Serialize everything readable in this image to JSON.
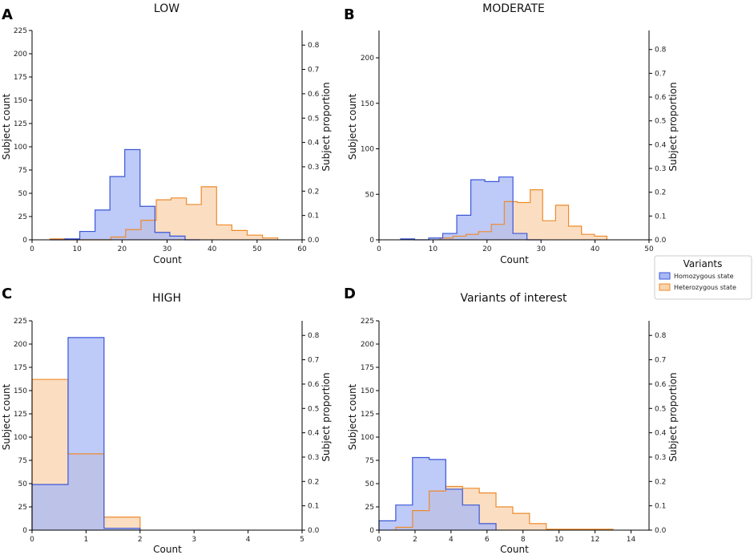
{
  "colors": {
    "homozygous_fill": "#a8b8f5",
    "homozygous_line": "#3b57d6",
    "heterozygous_fill": "#f9d3ad",
    "heterozygous_line": "#ee8a2b",
    "overlap_fill": "#b49cc8",
    "axis": "#000000"
  },
  "legend": {
    "title": "Variants",
    "entries": [
      "Homozygous state",
      "Heterozygous state"
    ]
  },
  "chart_data": [
    {
      "type": "histogram",
      "letter": "A",
      "title": "LOW",
      "xlabel": "Count",
      "ylabel": "Subject count",
      "ylabel_right": "Subject proportion",
      "xlim": [
        0,
        60
      ],
      "ylim": [
        0,
        225
      ],
      "xticks": [
        0,
        10,
        20,
        30,
        40,
        50,
        60
      ],
      "yticks": [
        0,
        25,
        50,
        75,
        100,
        125,
        150,
        175,
        200,
        225
      ],
      "yticks_right": [
        0.0,
        0.1,
        0.2,
        0.3,
        0.4,
        0.5,
        0.6,
        0.7,
        0.8
      ],
      "right_max": 0.86,
      "series": [
        {
          "name": "Homozygous state",
          "edges": [
            4,
            7.3,
            10.6,
            14,
            17.3,
            20.6,
            24,
            27.3,
            30.6,
            34,
            37.3
          ],
          "values": [
            0,
            1,
            9,
            32,
            68,
            97,
            36,
            8,
            4,
            0
          ]
        },
        {
          "name": "Heterozygous state",
          "edges": [
            4,
            7.4,
            10.7,
            14.1,
            17.5,
            20.8,
            24.2,
            27.6,
            30.9,
            34.3,
            37.6,
            41,
            44.4,
            47.8,
            51.2,
            54.6
          ],
          "values": [
            1,
            0,
            0,
            0,
            3,
            11,
            21,
            43,
            45,
            38,
            57,
            16,
            10,
            5,
            2
          ]
        }
      ]
    },
    {
      "type": "histogram",
      "letter": "B",
      "title": "MODERATE",
      "xlabel": "Count",
      "ylabel": "Subject count",
      "ylabel_right": "Subject proportion",
      "xlim": [
        0,
        50
      ],
      "ylim": [
        0,
        230
      ],
      "xticks": [
        0,
        10,
        20,
        30,
        40,
        50
      ],
      "yticks": [
        0,
        50,
        100,
        150,
        200
      ],
      "yticks_right": [
        0.0,
        0.1,
        0.2,
        0.3,
        0.4,
        0.5,
        0.6,
        0.7,
        0.8
      ],
      "right_max": 0.88,
      "series": [
        {
          "name": "Homozygous state",
          "edges": [
            4,
            6.6,
            9.2,
            11.8,
            14.4,
            17,
            19.6,
            22.2,
            24.8,
            27.4,
            30
          ],
          "values": [
            1,
            0,
            2,
            7,
            27,
            66,
            64,
            69,
            7,
            0
          ]
        },
        {
          "name": "Heterozygous state",
          "edges": [
            11.3,
            13.7,
            16.1,
            18.4,
            20.8,
            23.2,
            25.6,
            28,
            30.3,
            32.7,
            35.1,
            37.5,
            39.9,
            42.2
          ],
          "values": [
            2,
            4,
            6,
            9,
            17,
            42,
            41,
            55,
            21,
            38,
            15,
            6,
            4
          ]
        }
      ]
    },
    {
      "type": "histogram",
      "letter": "C",
      "title": "HIGH",
      "xlabel": "Count",
      "ylabel": "Subject count",
      "ylabel_right": "Subject proportion",
      "xlim": [
        0,
        5
      ],
      "ylim": [
        0,
        225
      ],
      "xticks": [
        0,
        1,
        2,
        3,
        4,
        5
      ],
      "yticks": [
        0,
        25,
        50,
        75,
        100,
        125,
        150,
        175,
        200,
        225
      ],
      "yticks_right": [
        0.0,
        0.1,
        0.2,
        0.3,
        0.4,
        0.5,
        0.6,
        0.7,
        0.8
      ],
      "right_max": 0.86,
      "series": [
        {
          "name": "Homozygous state",
          "edges": [
            0,
            0.667,
            1.333,
            2
          ],
          "values": [
            49,
            207,
            2
          ]
        },
        {
          "name": "Heterozygous state",
          "edges": [
            0,
            0.667,
            1.333,
            2
          ],
          "values": [
            162,
            82,
            14
          ]
        }
      ]
    },
    {
      "type": "histogram",
      "letter": "D",
      "title": "Variants of interest",
      "xlabel": "Count",
      "ylabel": "Subject count",
      "ylabel_right": "Subject proportion",
      "xlim": [
        0,
        15
      ],
      "ylim": [
        0,
        225
      ],
      "xticks": [
        0,
        2,
        4,
        6,
        8,
        10,
        12,
        14
      ],
      "yticks": [
        0,
        25,
        50,
        75,
        100,
        125,
        150,
        175,
        200,
        225
      ],
      "yticks_right": [
        0.0,
        0.1,
        0.2,
        0.3,
        0.4,
        0.5,
        0.6,
        0.7,
        0.8
      ],
      "right_max": 0.86,
      "series": [
        {
          "name": "Homozygous state",
          "edges": [
            0,
            0.93,
            1.86,
            2.79,
            3.71,
            4.64,
            5.57,
            6.5
          ],
          "values": [
            10,
            27,
            78,
            76,
            44,
            27,
            7
          ]
        },
        {
          "name": "Heterozygous state",
          "edges": [
            0.93,
            1.86,
            2.79,
            3.71,
            4.64,
            5.57,
            6.5,
            7.43,
            8.36,
            9.29,
            10.21,
            11.14,
            12.07,
            13
          ],
          "values": [
            3,
            21,
            42,
            47,
            45,
            40,
            25,
            18,
            7,
            1,
            1,
            1,
            1
          ]
        }
      ]
    }
  ]
}
